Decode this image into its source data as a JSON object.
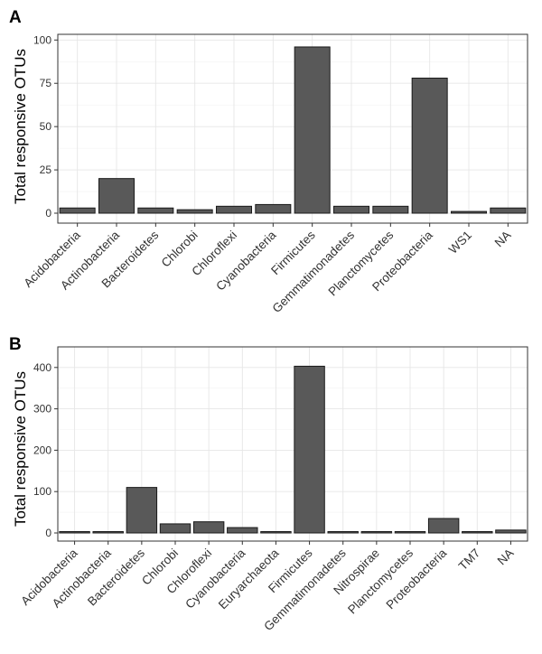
{
  "chart_data": [
    {
      "panel": "A",
      "type": "bar",
      "ylabel": "Total responsive OTUs",
      "xlabel": "",
      "ylim": [
        0,
        100
      ],
      "yticks": [
        0,
        25,
        50,
        75,
        100
      ],
      "grid": true,
      "categories": [
        "Acidobacteria",
        "Actinobacteria",
        "Bacteroidetes",
        "Chlorobi",
        "Chloroflexi",
        "Cyanobacteria",
        "Firmicutes",
        "Gemmatimonadetes",
        "Planctomycetes",
        "Proteobacteria",
        "WS1",
        "NA"
      ],
      "values": [
        3,
        20,
        3,
        2,
        4,
        5,
        96,
        4,
        4,
        78,
        1,
        3
      ],
      "colors": {
        "bar": "#595959",
        "bar_edge": "#1a1a1a"
      }
    },
    {
      "panel": "B",
      "type": "bar",
      "ylabel": "Total responsive OTUs",
      "xlabel": "",
      "ylim": [
        0,
        420
      ],
      "yticks": [
        0,
        100,
        200,
        300,
        400
      ],
      "grid": true,
      "categories": [
        "Acidobacteria",
        "Actinobacteria",
        "Bacteroidetes",
        "Chlorobi",
        "Chloroflexi",
        "Cyanobacteria",
        "Euryarchaeota",
        "Firmicutes",
        "Gemmatimonadetes",
        "Nitrospirae",
        "Planctomycetes",
        "Proteobacteria",
        "TM7",
        "NA"
      ],
      "values": [
        3,
        1,
        110,
        22,
        27,
        13,
        1,
        403,
        1,
        3,
        1,
        35,
        1,
        7
      ],
      "colors": {
        "bar": "#595959",
        "bar_edge": "#1a1a1a"
      }
    }
  ]
}
